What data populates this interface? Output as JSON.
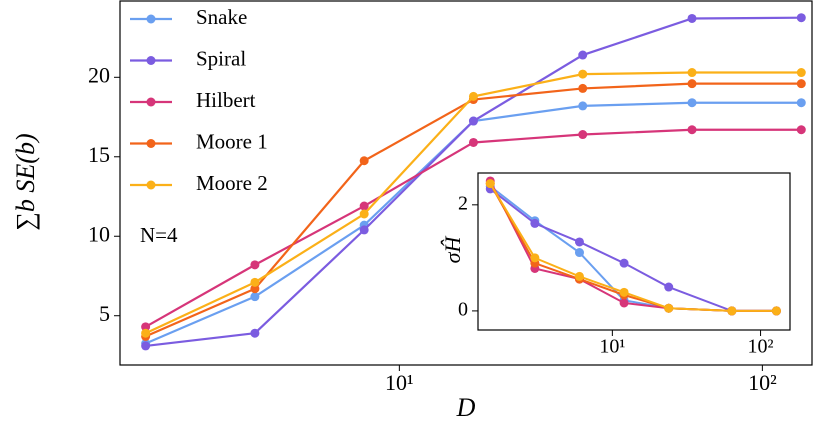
{
  "chart_data": [
    {
      "type": "line",
      "xlabel": "D",
      "ylabel": "∑b SE(b)",
      "annotation": "N=4",
      "log_x": true,
      "legend": "upper left",
      "x": [
        2,
        4,
        8,
        16,
        32,
        64,
        128
      ],
      "xlim": [
        1.7,
        137
      ],
      "xticks": [
        {
          "value": 10,
          "label": "10¹"
        },
        {
          "value": 100,
          "label": "10²"
        }
      ],
      "ylim": [
        1.9,
        24.8
      ],
      "yticks": [
        5,
        10,
        15,
        20
      ],
      "series": [
        {
          "name": "Snake",
          "color": "#6a9ff0",
          "values": [
            3.25,
            6.2,
            10.7,
            17.25,
            18.2,
            18.4,
            18.4
          ]
        },
        {
          "name": "Spiral",
          "color": "#7b5ce0",
          "values": [
            3.1,
            3.9,
            10.4,
            17.25,
            21.4,
            23.7,
            23.75
          ]
        },
        {
          "name": "Hilbert",
          "color": "#d63579",
          "values": [
            4.3,
            8.2,
            11.9,
            15.9,
            16.4,
            16.7,
            16.7
          ]
        },
        {
          "name": "Moore 1",
          "color": "#f2641a",
          "values": [
            3.7,
            6.7,
            14.75,
            18.6,
            19.3,
            19.6,
            19.6
          ]
        },
        {
          "name": "Moore 2",
          "color": "#fbb018",
          "values": [
            3.9,
            7.1,
            11.4,
            18.8,
            20.2,
            20.3,
            20.3
          ]
        }
      ]
    },
    {
      "type": "line",
      "ylabel": "σĤ",
      "log_x": true,
      "x": [
        1.5,
        3,
        6,
        12,
        24,
        64,
        128
      ],
      "xlim": [
        1.24,
        158
      ],
      "xticks": [
        {
          "value": 10,
          "label": "10¹"
        },
        {
          "value": 100,
          "label": "10²"
        }
      ],
      "ylim": [
        -0.36,
        2.6
      ],
      "yticks": [
        0,
        2
      ],
      "series": [
        {
          "name": "Snake",
          "color": "#6a9ff0",
          "values": [
            2.35,
            1.7,
            1.1,
            0.2,
            0.05,
            0,
            0
          ]
        },
        {
          "name": "Spiral",
          "color": "#7b5ce0",
          "values": [
            2.3,
            1.65,
            1.3,
            0.9,
            0.45,
            0,
            0
          ]
        },
        {
          "name": "Hilbert",
          "color": "#d63579",
          "values": [
            2.45,
            0.8,
            0.6,
            0.15,
            0.05,
            0,
            0
          ]
        },
        {
          "name": "Moore 1",
          "color": "#f2641a",
          "values": [
            2.4,
            0.9,
            0.6,
            0.3,
            0.05,
            0,
            0
          ]
        },
        {
          "name": "Moore 2",
          "color": "#fbb018",
          "values": [
            2.4,
            1.0,
            0.65,
            0.35,
            0.05,
            0,
            0
          ]
        }
      ]
    }
  ]
}
